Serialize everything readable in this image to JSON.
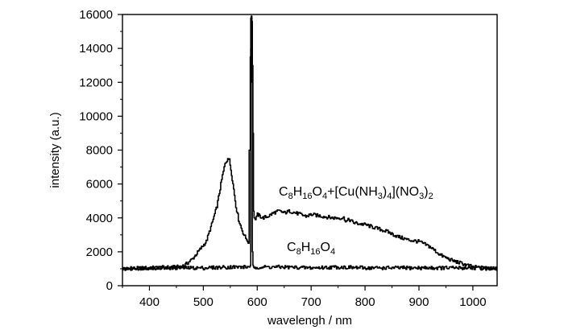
{
  "chart_data": {
    "type": "line",
    "xlabel": "wavelengh / nm",
    "ylabel": "intensity (a.u.)",
    "xlim": [
      350,
      1045
    ],
    "ylim": [
      0,
      16000
    ],
    "x_ticks": [
      400,
      500,
      600,
      700,
      800,
      900,
      1000
    ],
    "y_ticks": [
      0,
      2000,
      4000,
      6000,
      8000,
      10000,
      12000,
      14000,
      16000
    ],
    "grid": false,
    "legend": "none",
    "line_color": "#000000",
    "series": [
      {
        "label_parts": [
          {
            "t": "C",
            "s": false
          },
          {
            "t": "8",
            "s": true
          },
          {
            "t": "H",
            "s": false
          },
          {
            "t": "16",
            "s": true
          },
          {
            "t": "O",
            "s": false
          },
          {
            "t": "4",
            "s": true
          },
          {
            "t": "+[Cu(NH",
            "s": false
          },
          {
            "t": "3",
            "s": true
          },
          {
            "t": ")",
            "s": false
          },
          {
            "t": "4",
            "s": true
          },
          {
            "t": "](NO",
            "s": false
          },
          {
            "t": "3",
            "s": true
          },
          {
            "t": ")",
            "s": false
          },
          {
            "t": "2",
            "s": true
          }
        ],
        "x": [
          350,
          400,
          450,
          465,
          480,
          495,
          505,
          515,
          525,
          535,
          540,
          545,
          548,
          552,
          556,
          560,
          565,
          570,
          575,
          580,
          583,
          585,
          587,
          588,
          589,
          590,
          591,
          592,
          593,
          594,
          596,
          598,
          600,
          610,
          620,
          630,
          640,
          650,
          660,
          670,
          680,
          690,
          700,
          720,
          740,
          760,
          765,
          770,
          780,
          800,
          820,
          840,
          860,
          880,
          900,
          920,
          940,
          960,
          980,
          1000,
          1020,
          1045
        ],
        "y": [
          1000,
          1050,
          1100,
          1200,
          1600,
          2200,
          2600,
          3600,
          4700,
          6500,
          7200,
          7500,
          7400,
          6600,
          5700,
          4700,
          3900,
          3400,
          3000,
          2700,
          2500,
          8000,
          13500,
          15800,
          15900,
          15600,
          13000,
          9000,
          4400,
          4000,
          3900,
          4100,
          4200,
          4000,
          4100,
          4300,
          4400,
          4300,
          4400,
          4300,
          4200,
          4100,
          4200,
          4100,
          4000,
          4000,
          3800,
          3900,
          3700,
          3600,
          3400,
          3200,
          2900,
          2700,
          2600,
          2300,
          1800,
          1500,
          1300,
          1100,
          1050,
          1000
        ]
      },
      {
        "label_parts": [
          {
            "t": "C",
            "s": false
          },
          {
            "t": "8",
            "s": true
          },
          {
            "t": "H",
            "s": false
          },
          {
            "t": "16",
            "s": true
          },
          {
            "t": "O",
            "s": false
          },
          {
            "t": "4",
            "s": true
          }
        ],
        "x": [
          350,
          400,
          450,
          500,
          550,
          580,
          585,
          586,
          587,
          588,
          589,
          590,
          591,
          592,
          593,
          594,
          595,
          600,
          650,
          700,
          750,
          800,
          850,
          900,
          950,
          1000,
          1045
        ],
        "y": [
          1000,
          1050,
          1050,
          1050,
          1100,
          1100,
          1100,
          1100,
          1200,
          14000,
          15900,
          12000,
          2000,
          1200,
          1100,
          1050,
          1050,
          1100,
          1100,
          1050,
          1100,
          1050,
          1050,
          1050,
          1050,
          1050,
          1000
        ]
      }
    ]
  }
}
